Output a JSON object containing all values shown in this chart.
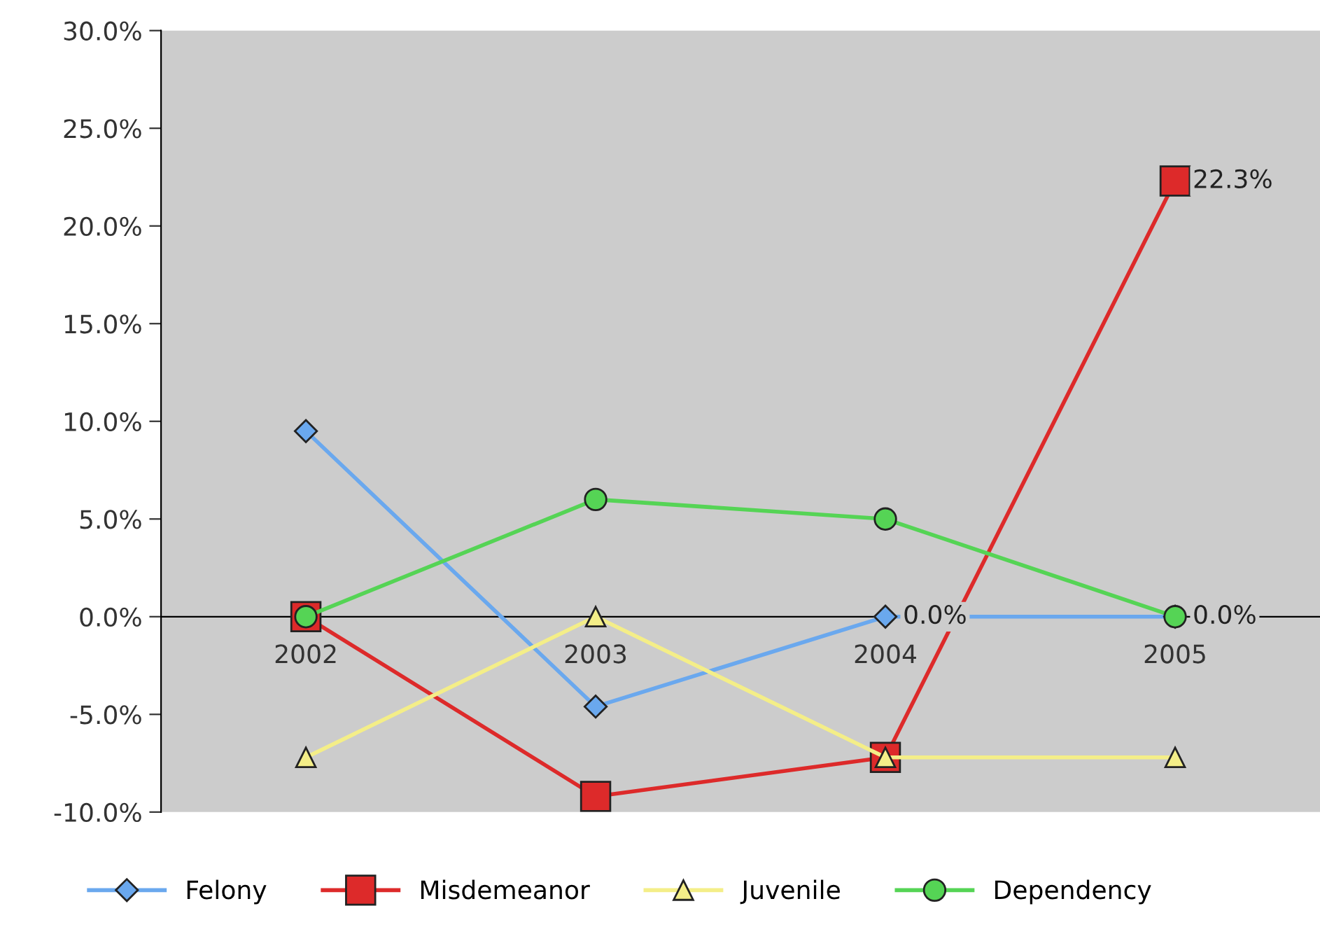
{
  "chart_data": {
    "type": "line",
    "categories": [
      "2002",
      "2003",
      "2004",
      "2005"
    ],
    "series": [
      {
        "name": "Felony",
        "color": "#6aa8ee",
        "marker": "diamond",
        "values": [
          9.5,
          -4.6,
          0.0,
          0.0
        ],
        "value_labels": [
          null,
          null,
          "0.0%",
          null
        ]
      },
      {
        "name": "Misdemeanor",
        "color": "#dd2a2a",
        "marker": "square",
        "values": [
          0.0,
          -9.2,
          -7.2,
          22.3
        ],
        "value_labels": [
          null,
          null,
          null,
          "22.3%"
        ]
      },
      {
        "name": "Juvenile",
        "color": "#f4ee88",
        "marker": "triangle",
        "values": [
          -7.2,
          0.0,
          -7.2,
          -7.2
        ]
      },
      {
        "name": "Dependency",
        "color": "#55d455",
        "marker": "circle",
        "values": [
          0.0,
          6.0,
          5.0,
          0.0
        ],
        "value_labels": [
          null,
          null,
          null,
          "0.0%"
        ]
      }
    ],
    "ylim": [
      -10,
      30
    ],
    "yticks": [
      {
        "value": -10,
        "label": "-10.0%"
      },
      {
        "value": -5,
        "label": "-5.0%"
      },
      {
        "value": 0,
        "label": "0.0%"
      },
      {
        "value": 5,
        "label": "5.0%"
      },
      {
        "value": 10,
        "label": "10.0%"
      },
      {
        "value": 15,
        "label": "15.0%"
      },
      {
        "value": 20,
        "label": "20.0%"
      },
      {
        "value": 25,
        "label": "25.0%"
      },
      {
        "value": 30,
        "label": "30.0%"
      }
    ],
    "grid": false,
    "legend": "bottom",
    "line_style": "solid"
  }
}
